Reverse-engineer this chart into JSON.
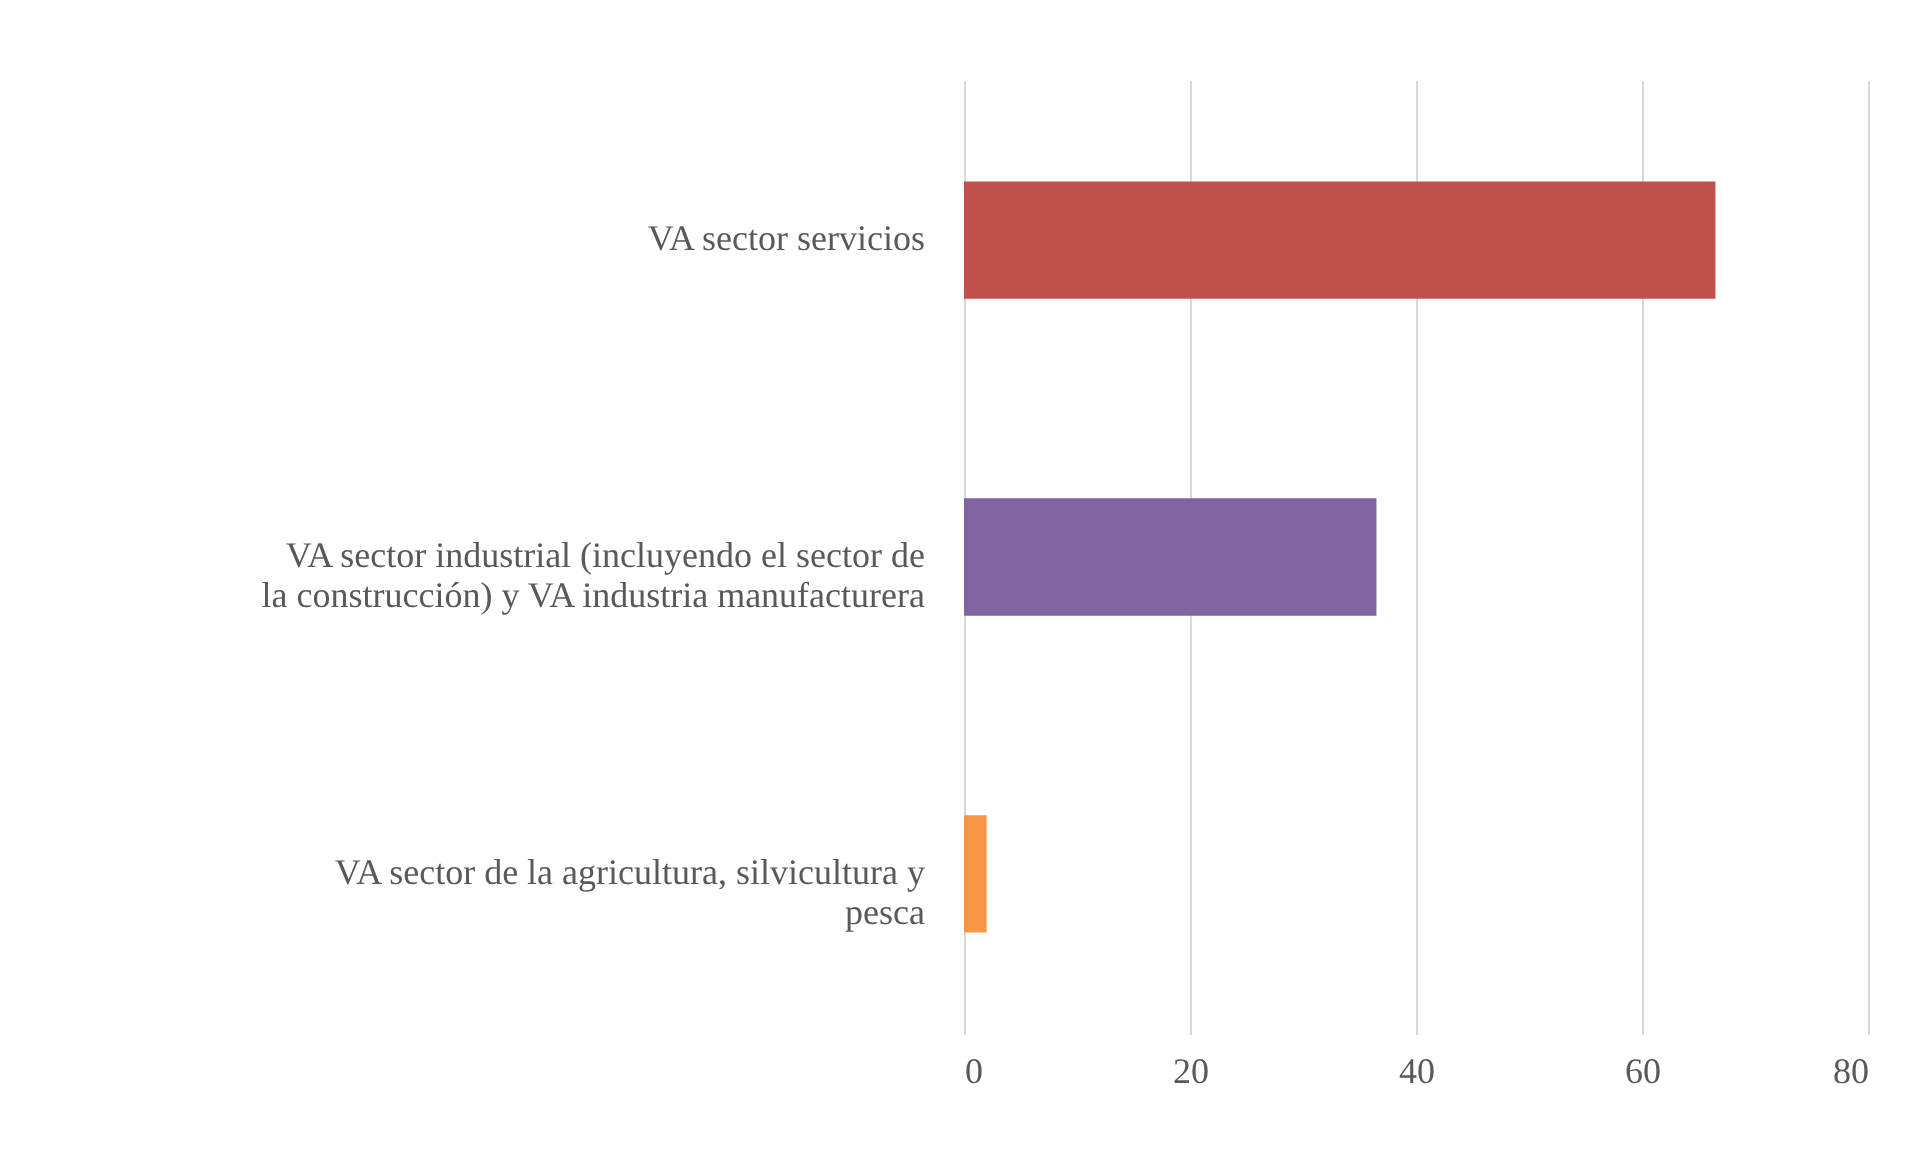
{
  "chart_data": {
    "type": "bar",
    "orientation": "horizontal",
    "categories": [
      "VA sector servicios",
      "VA sector industrial (incluyendo el sector de la construcción) y VA industria manufacturera",
      "VA sector de la agricultura, silvicultura y pesca"
    ],
    "values": [
      66.5,
      36.5,
      2.0
    ],
    "colors": [
      "#c0504d",
      "#8064a2",
      "#f79646"
    ],
    "xlim": [
      0,
      80
    ],
    "xticks": [
      0,
      20,
      40,
      60,
      80
    ],
    "grid": "x"
  }
}
